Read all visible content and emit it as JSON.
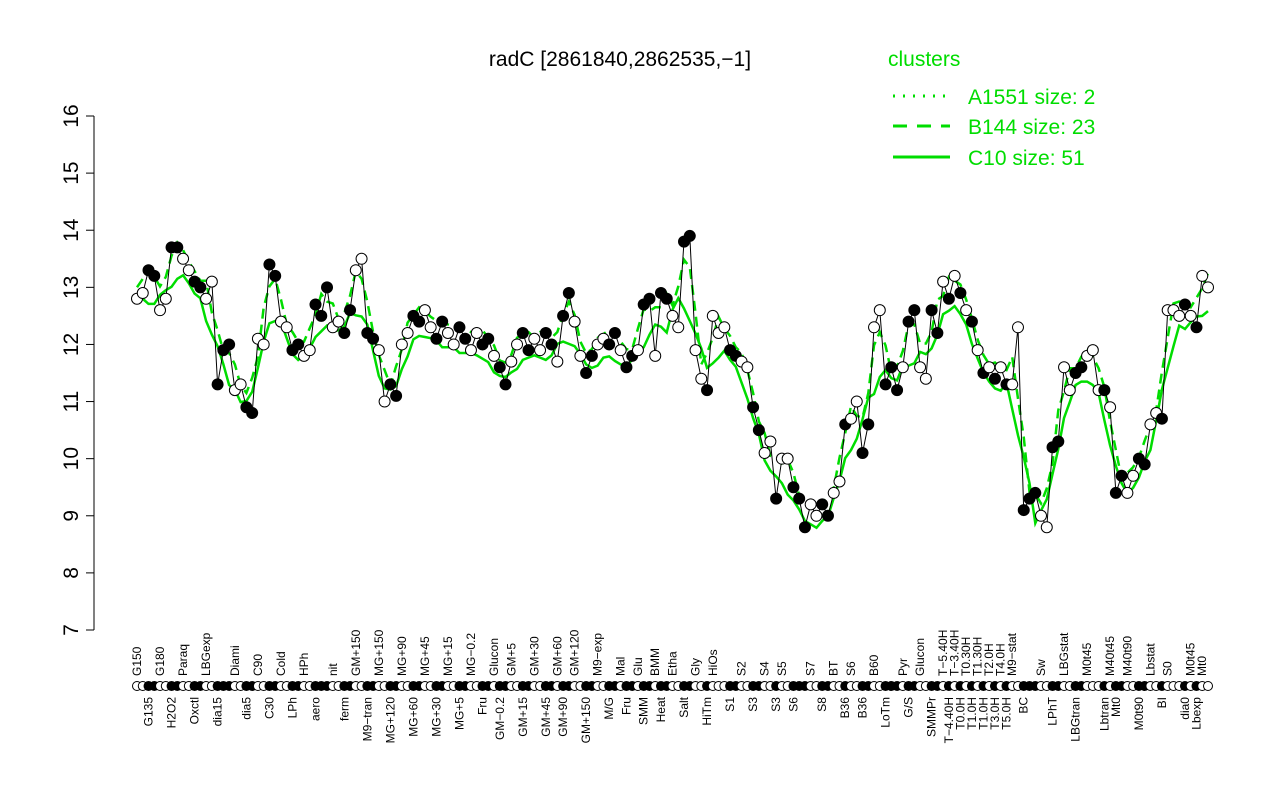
{
  "chart_data": {
    "type": "line",
    "title": "radC [2861840,2862535,−1]",
    "xlabel": "",
    "ylabel": "",
    "ylim": [
      7,
      16
    ],
    "yticks": [
      7,
      8,
      9,
      10,
      11,
      12,
      13,
      14,
      15,
      16
    ],
    "grid": false,
    "legend": {
      "placement": "top-right",
      "title": "clusters",
      "entries": [
        {
          "name": "A1551 size: 2",
          "style": "dotted"
        },
        {
          "name": "B144 size: 23",
          "style": "dashed"
        },
        {
          "name": "C10 size: 51",
          "style": "solid"
        }
      ]
    },
    "colors": {
      "clusters": "#00dd00",
      "points": "#000000"
    },
    "points": [
      [
        "G150",
        12.8
      ],
      [
        "G150",
        12.9
      ],
      [
        "G135",
        13.3
      ],
      [
        "G135",
        13.2
      ],
      [
        "G180",
        12.6
      ],
      [
        "G180",
        12.8
      ],
      [
        "H2O2",
        13.7
      ],
      [
        "H2O2",
        13.7
      ],
      [
        "Paraq",
        13.5
      ],
      [
        "Paraq",
        13.3
      ],
      [
        "Oxctl",
        13.1
      ],
      [
        "Oxctl",
        13.0
      ],
      [
        "LBGexp",
        12.8
      ],
      [
        "LBGexp",
        13.1
      ],
      [
        "dia15",
        11.3
      ],
      [
        "dia15",
        11.9
      ],
      [
        "dia15",
        12.0
      ],
      [
        "Diami",
        11.2
      ],
      [
        "Diami",
        11.3
      ],
      [
        "dia5",
        10.9
      ],
      [
        "dia5",
        10.8
      ],
      [
        "C90",
        12.1
      ],
      [
        "C90",
        12.0
      ],
      [
        "C30",
        13.4
      ],
      [
        "C30",
        13.2
      ],
      [
        "Cold",
        12.4
      ],
      [
        "Cold",
        12.3
      ],
      [
        "LPh",
        11.9
      ],
      [
        "LPh",
        12.0
      ],
      [
        "HPh",
        11.8
      ],
      [
        "HPh",
        11.9
      ],
      [
        "aero",
        12.7
      ],
      [
        "aero",
        12.5
      ],
      [
        "aero",
        13.0
      ],
      [
        "nit",
        12.3
      ],
      [
        "nit",
        12.4
      ],
      [
        "ferm",
        12.2
      ],
      [
        "ferm",
        12.6
      ],
      [
        "GM+150",
        13.3
      ],
      [
        "GM+150",
        13.5
      ],
      [
        "M9−tran",
        12.2
      ],
      [
        "M9−tran",
        12.1
      ],
      [
        "MG+150",
        11.9
      ],
      [
        "MG+150",
        11.0
      ],
      [
        "MG+120",
        11.3
      ],
      [
        "MG+120",
        11.1
      ],
      [
        "MG+90",
        12.0
      ],
      [
        "MG+90",
        12.2
      ],
      [
        "MG+60",
        12.5
      ],
      [
        "MG+60",
        12.4
      ],
      [
        "MG+45",
        12.6
      ],
      [
        "MG+45",
        12.3
      ],
      [
        "MG+30",
        12.1
      ],
      [
        "MG+30",
        12.4
      ],
      [
        "MG+15",
        12.2
      ],
      [
        "MG+15",
        12.0
      ],
      [
        "MG+5",
        12.3
      ],
      [
        "MG+5",
        12.1
      ],
      [
        "MG−0.2",
        11.9
      ],
      [
        "MG−0.2",
        12.2
      ],
      [
        "Fru",
        12.0
      ],
      [
        "Fru",
        12.1
      ],
      [
        "Glucon",
        11.8
      ],
      [
        "GM−0.2",
        11.6
      ],
      [
        "GM−0.2",
        11.3
      ],
      [
        "GM+5",
        11.7
      ],
      [
        "GM+5",
        12.0
      ],
      [
        "GM+15",
        12.2
      ],
      [
        "GM+15",
        11.9
      ],
      [
        "GM+30",
        12.1
      ],
      [
        "GM+30",
        11.9
      ],
      [
        "GM+45",
        12.2
      ],
      [
        "GM+45",
        12.0
      ],
      [
        "GM+60",
        11.7
      ],
      [
        "GM+90",
        12.5
      ],
      [
        "GM+90",
        12.9
      ],
      [
        "GM+120",
        12.4
      ],
      [
        "GM+120",
        11.8
      ],
      [
        "GM+150",
        11.5
      ],
      [
        "GM+150",
        11.8
      ],
      [
        "M9−exp",
        12.0
      ],
      [
        "M9−exp",
        12.1
      ],
      [
        "M/G",
        12.0
      ],
      [
        "M/G",
        12.2
      ],
      [
        "Mal",
        11.9
      ],
      [
        "Fru",
        11.6
      ],
      [
        "Fru",
        11.8
      ],
      [
        "Glu",
        11.9
      ],
      [
        "SMM",
        12.7
      ],
      [
        "SMM",
        12.8
      ],
      [
        "BMM",
        11.8
      ],
      [
        "Heat",
        12.9
      ],
      [
        "Heat",
        12.8
      ],
      [
        "Etha",
        12.5
      ],
      [
        "Etha",
        12.3
      ],
      [
        "Salt",
        13.8
      ],
      [
        "Salt",
        13.9
      ],
      [
        "Gly",
        11.9
      ],
      [
        "Gly",
        11.4
      ],
      [
        "HiTm",
        11.2
      ],
      [
        "HiOs",
        12.5
      ],
      [
        "HiOs",
        12.2
      ],
      [
        "HiOs",
        12.3
      ],
      [
        "S1",
        11.9
      ],
      [
        "S1",
        11.8
      ],
      [
        "S2",
        11.7
      ],
      [
        "S2",
        11.6
      ],
      [
        "S3",
        10.9
      ],
      [
        "S3",
        10.5
      ],
      [
        "S4",
        10.1
      ],
      [
        "S4",
        10.3
      ],
      [
        "S3",
        9.3
      ],
      [
        "S5",
        10.0
      ],
      [
        "S5",
        10.0
      ],
      [
        "S6",
        9.5
      ],
      [
        "S6",
        9.3
      ],
      [
        "S6",
        8.8
      ],
      [
        "S7",
        9.2
      ],
      [
        "S7",
        9.0
      ],
      [
        "S8",
        9.2
      ],
      [
        "S8",
        9.0
      ],
      [
        "BT",
        9.4
      ],
      [
        "BT",
        9.6
      ],
      [
        "B36",
        10.6
      ],
      [
        "S6",
        10.7
      ],
      [
        "S6",
        11.0
      ],
      [
        "B36",
        10.1
      ],
      [
        "B36",
        10.6
      ],
      [
        "B60",
        12.3
      ],
      [
        "B60",
        12.6
      ],
      [
        "LoTm",
        11.3
      ],
      [
        "LoTm",
        11.6
      ],
      [
        "LoTm",
        11.2
      ],
      [
        "Pyr",
        11.6
      ],
      [
        "G/S",
        12.4
      ],
      [
        "G/S",
        12.6
      ],
      [
        "Glucon",
        11.6
      ],
      [
        "Glucon",
        11.4
      ],
      [
        "SMMPr",
        12.6
      ],
      [
        "SMMPr",
        12.2
      ],
      [
        "T−5.40H",
        13.1
      ],
      [
        "T−4.40H",
        12.8
      ],
      [
        "T−3.40H",
        13.2
      ],
      [
        "T0.0H",
        12.9
      ],
      [
        "T0.30H",
        12.6
      ],
      [
        "T1.0H",
        12.4
      ],
      [
        "T1.30H",
        11.9
      ],
      [
        "T1.0H",
        11.5
      ],
      [
        "T2.0H",
        11.6
      ],
      [
        "T3.0H",
        11.4
      ],
      [
        "T4.0H",
        11.6
      ],
      [
        "T5.0H",
        11.3
      ],
      [
        "M9−stat",
        11.3
      ],
      [
        "M9−stat",
        12.3
      ],
      [
        "BC",
        9.1
      ],
      [
        "BC",
        9.3
      ],
      [
        "BC",
        9.4
      ],
      [
        "Sw",
        9.0
      ],
      [
        "Sw",
        8.8
      ],
      [
        "LPhT",
        10.2
      ],
      [
        "LPhT",
        10.3
      ],
      [
        "LBGstat",
        11.6
      ],
      [
        "LBGstat",
        11.2
      ],
      [
        "LBGtran",
        11.5
      ],
      [
        "LBGtran",
        11.6
      ],
      [
        "M0t45",
        11.8
      ],
      [
        "M0t45",
        11.9
      ],
      [
        "M0t45",
        11.2
      ],
      [
        "Lbtran",
        11.2
      ],
      [
        "M40t45",
        10.9
      ],
      [
        "Mt0",
        9.4
      ],
      [
        "Mt0",
        9.7
      ],
      [
        "M40t90",
        9.4
      ],
      [
        "M40t90",
        9.7
      ],
      [
        "M0t90",
        10.0
      ],
      [
        "M0t90",
        9.9
      ],
      [
        "Lbstat",
        10.6
      ],
      [
        "Lbstat",
        10.8
      ],
      [
        "BI",
        10.7
      ],
      [
        "S0",
        12.6
      ],
      [
        "S0",
        12.6
      ],
      [
        "S0",
        12.5
      ],
      [
        "dia0",
        12.7
      ],
      [
        "M0t45",
        12.5
      ],
      [
        "Lbexp",
        12.3
      ],
      [
        "Mt0",
        13.2
      ],
      [
        "Mt0",
        13.0
      ]
    ]
  }
}
